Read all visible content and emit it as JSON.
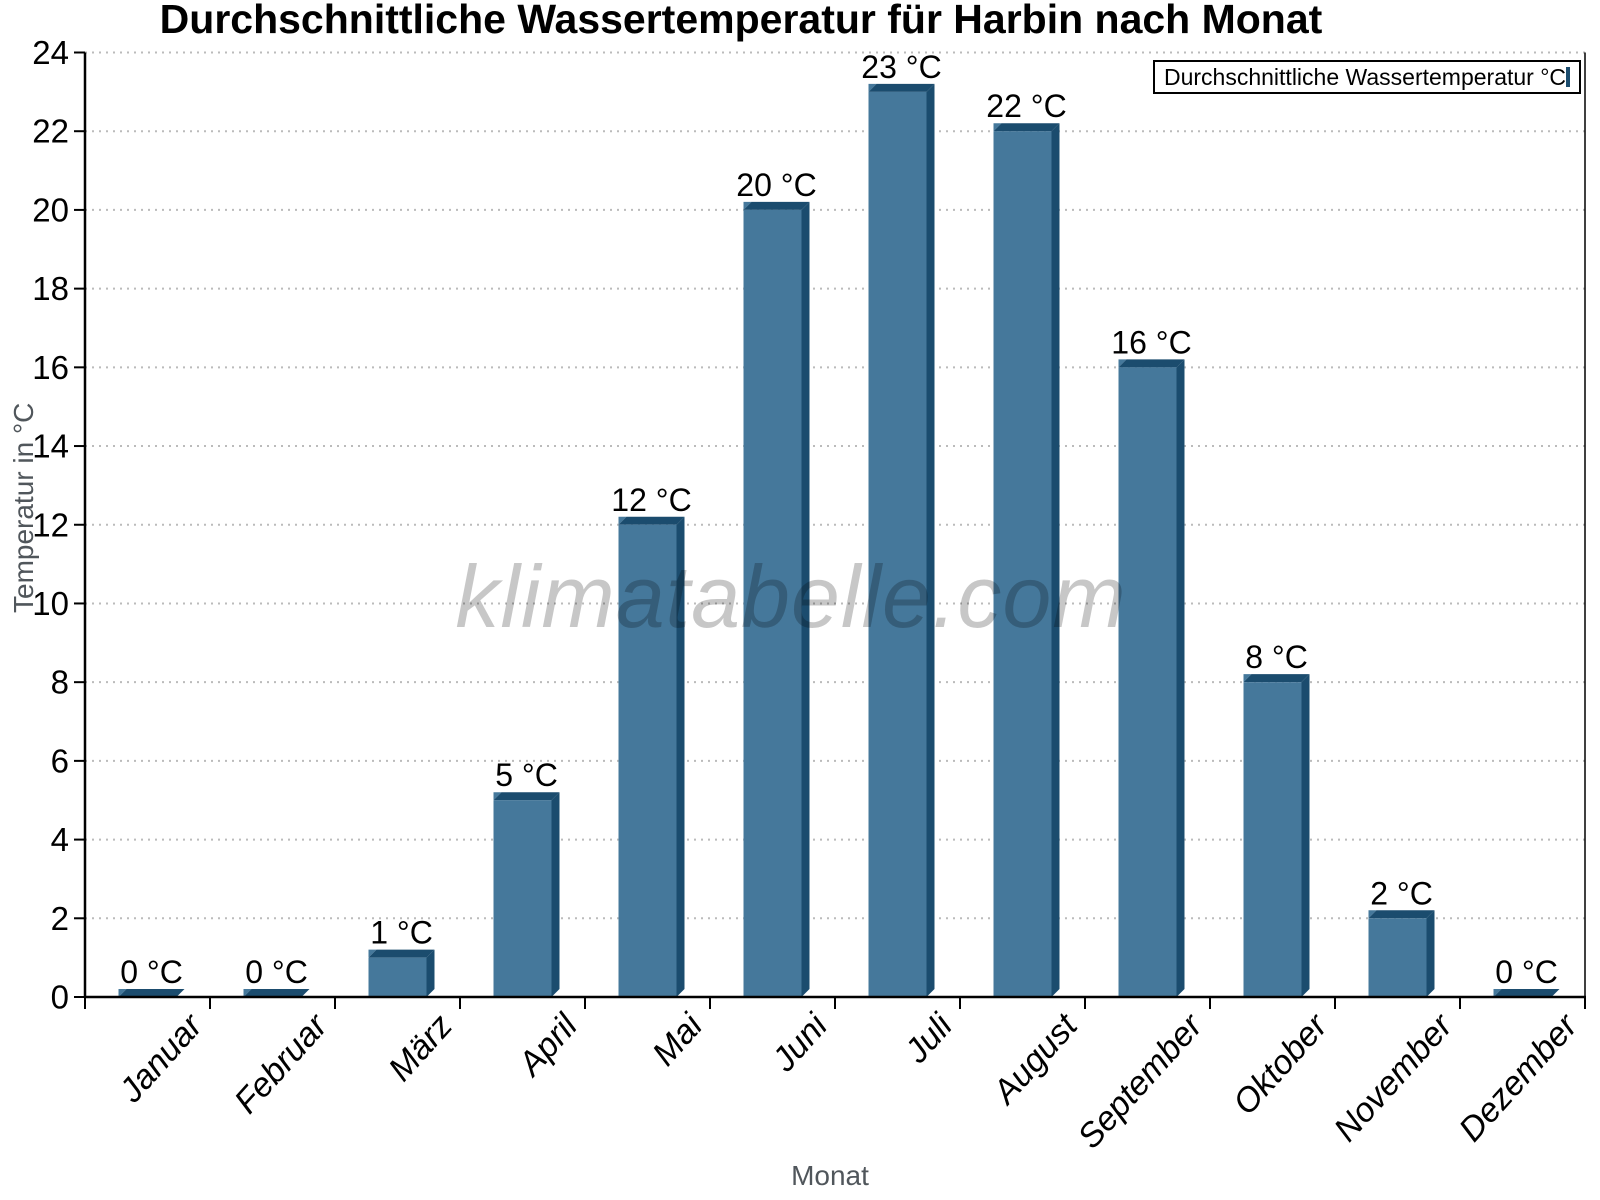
{
  "chart_data": {
    "type": "bar",
    "title": "Durchschnittliche Wassertemperatur für Harbin nach Monat",
    "xlabel": "Monat",
    "ylabel": "Temperatur in °C",
    "categories": [
      "Januar",
      "Februar",
      "März",
      "April",
      "Mai",
      "Juni",
      "Juli",
      "August",
      "September",
      "Oktober",
      "November",
      "Dezember"
    ],
    "values": [
      0,
      0,
      1,
      5,
      12,
      20,
      23,
      22,
      16,
      8,
      2,
      0
    ],
    "value_labels": [
      "0 °C",
      "0 °C",
      "1 °C",
      "5 °C",
      "12 °C",
      "20 °C",
      "23 °C",
      "22 °C",
      "16 °C",
      "8 °C",
      "2 °C",
      "0 °C"
    ],
    "ylim": [
      0,
      24
    ],
    "yticks": [
      0,
      2,
      4,
      6,
      8,
      10,
      12,
      14,
      16,
      18,
      20,
      22,
      24
    ],
    "grid": "horizontal-dotted",
    "legend_position": "top-right",
    "bar_style": "3d"
  },
  "legend": {
    "label": "Durchschnittliche Wassertemperatur °C"
  },
  "watermark": {
    "text": "klimatabelle.com"
  },
  "colors": {
    "bar_face": "#45789B",
    "bar_shade": "#1B4C6E",
    "axis": "#000000",
    "grid": "#BBBBBB",
    "text": "#000000",
    "axis_title": "#50565B",
    "watermark": "rgba(0,0,0,0.22)",
    "background": "#FFFFFF"
  }
}
